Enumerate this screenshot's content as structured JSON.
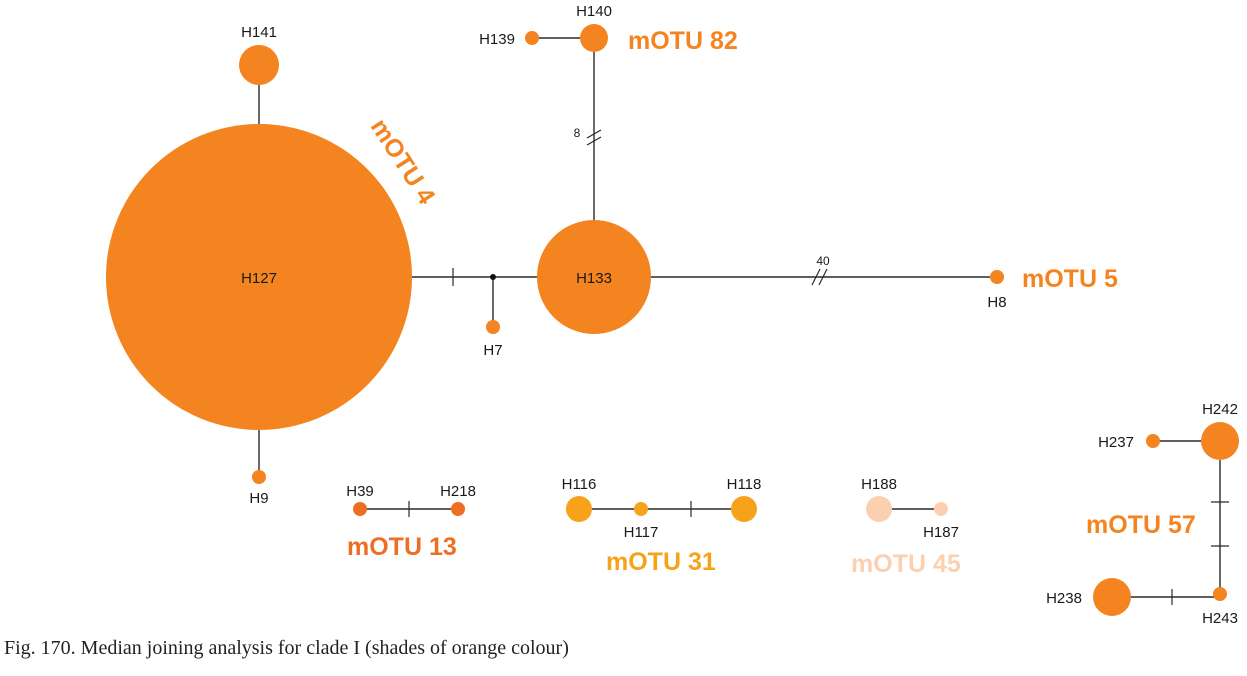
{
  "caption": "Fig. 170. Median joining analysis for clade I (shades of orange colour)",
  "colors": {
    "orange": "#f4841f",
    "dark_orange": "#ee6f24",
    "amber": "#f6a31b",
    "peach": "#fbd0b0",
    "line": "#2a2a2a"
  },
  "haplotypes": {
    "H127": "H127",
    "H141": "H141",
    "H9": "H9",
    "H7": "H7",
    "H133": "H133",
    "H140": "H140",
    "H139": "H139",
    "H8": "H8",
    "H39": "H39",
    "H218": "H218",
    "H116": "H116",
    "H117": "H117",
    "H118": "H118",
    "H188": "H188",
    "H187": "H187",
    "H242": "H242",
    "H237": "H237",
    "H238": "H238",
    "H243": "H243"
  },
  "groups": {
    "motu4": "mOTU 4",
    "motu82": "mOTU 82",
    "motu5": "mOTU 5",
    "motu13": "mOTU 13",
    "motu31": "mOTU 31",
    "motu45": "mOTU 45",
    "motu57": "mOTU 57"
  },
  "mutation_counts": {
    "h133_h140": "8",
    "h133_h8": "40"
  }
}
